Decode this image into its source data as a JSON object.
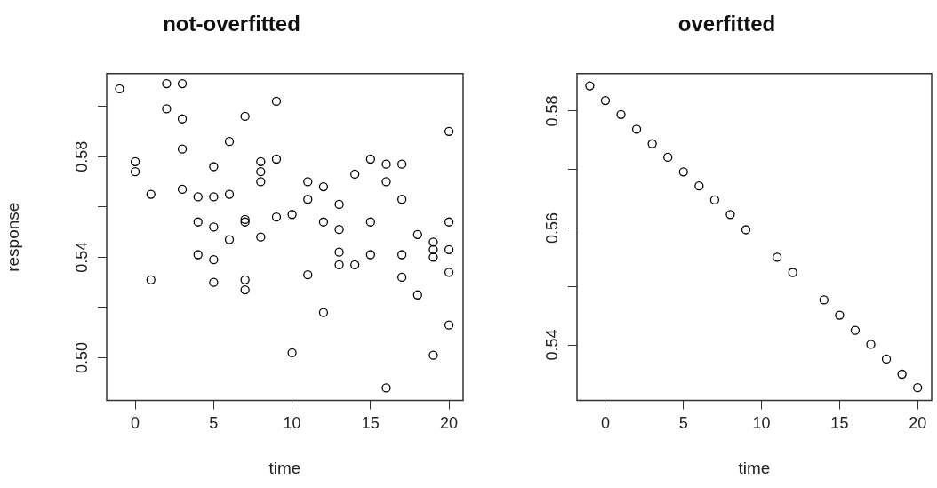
{
  "chart_data": [
    {
      "type": "scatter",
      "title": "not-overfitted",
      "xlabel": "time",
      "ylabel": "response",
      "color": "#000000",
      "marker": "circle",
      "x": [
        -1,
        0,
        0,
        1,
        1,
        2,
        2,
        3,
        3,
        3,
        3,
        4,
        4,
        4,
        5,
        5,
        5,
        5,
        5,
        6,
        6,
        6,
        7,
        7,
        7,
        7,
        7,
        8,
        8,
        8,
        8,
        9,
        9,
        9,
        10,
        10,
        11,
        11,
        11,
        12,
        12,
        12,
        13,
        13,
        13,
        13,
        14,
        14,
        15,
        15,
        15,
        16,
        16,
        16,
        17,
        17,
        17,
        17,
        18,
        18,
        19,
        19,
        19,
        19,
        20,
        20,
        20,
        20,
        20
      ],
      "values": [
        0.607,
        0.578,
        0.574,
        0.565,
        0.531,
        0.609,
        0.599,
        0.609,
        0.595,
        0.583,
        0.567,
        0.564,
        0.554,
        0.541,
        0.576,
        0.564,
        0.552,
        0.539,
        0.53,
        0.586,
        0.565,
        0.547,
        0.596,
        0.554,
        0.555,
        0.531,
        0.527,
        0.578,
        0.574,
        0.57,
        0.548,
        0.602,
        0.579,
        0.556,
        0.557,
        0.502,
        0.57,
        0.563,
        0.533,
        0.568,
        0.554,
        0.518,
        0.561,
        0.551,
        0.542,
        0.537,
        0.573,
        0.537,
        0.579,
        0.554,
        0.541,
        0.577,
        0.57,
        0.488,
        0.577,
        0.563,
        0.541,
        0.532,
        0.549,
        0.525,
        0.546,
        0.543,
        0.54,
        0.501,
        0.59,
        0.554,
        0.543,
        0.534,
        0.513
      ],
      "xlim": [
        -1.82,
        20.9
      ],
      "ylim": [
        0.483,
        0.613
      ],
      "xticks": [
        0,
        5,
        10,
        15,
        20
      ],
      "yticks": [
        {
          "value": 0.5,
          "label": "0.50"
        },
        {
          "value": 0.52,
          "label": null
        },
        {
          "value": 0.54,
          "label": "0.54"
        },
        {
          "value": 0.56,
          "label": null
        },
        {
          "value": 0.58,
          "label": "0.58"
        },
        {
          "value": 0.6,
          "label": null
        }
      ]
    },
    {
      "type": "scatter",
      "title": "overfitted",
      "xlabel": "time",
      "color": "#000000",
      "marker": "circle",
      "x": [
        -1,
        0,
        1,
        2,
        3,
        4,
        5,
        6,
        7,
        8,
        9,
        11,
        12,
        14,
        15,
        16,
        17,
        18,
        19,
        20
      ],
      "values": [
        0.5843,
        0.5818,
        0.5794,
        0.5769,
        0.5744,
        0.5721,
        0.5696,
        0.5672,
        0.5648,
        0.5623,
        0.5597,
        0.555,
        0.5524,
        0.5477,
        0.5451,
        0.5425,
        0.5401,
        0.5376,
        0.535,
        0.5327
      ],
      "xlim": [
        -1.82,
        20.9
      ],
      "ylim": [
        0.5305,
        0.5864
      ],
      "xticks": [
        0,
        5,
        10,
        15,
        20
      ],
      "yticks": [
        {
          "value": 0.54,
          "label": "0.54"
        },
        {
          "value": 0.55,
          "label": null
        },
        {
          "value": 0.56,
          "label": "0.56"
        },
        {
          "value": 0.57,
          "label": null
        },
        {
          "value": 0.58,
          "label": "0.58"
        }
      ]
    }
  ]
}
